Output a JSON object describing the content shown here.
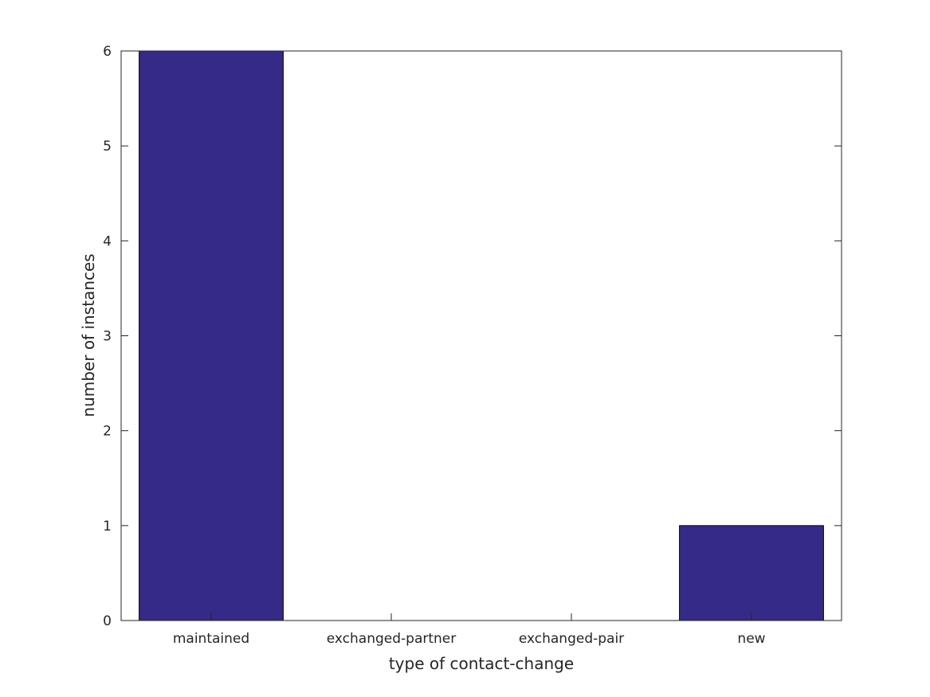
{
  "chart_data": {
    "type": "bar",
    "categories": [
      "maintained",
      "exchanged-partner",
      "exchanged-pair",
      "new"
    ],
    "values": [
      6,
      0,
      0,
      1
    ],
    "title": "",
    "xlabel": "type of contact-change",
    "ylabel": "number of instances",
    "ylim": [
      0,
      6
    ],
    "yticks": [
      0,
      1,
      2,
      3,
      4,
      5,
      6
    ],
    "grid": false,
    "bar_color": "#352a87",
    "edge_color": "#000000"
  }
}
